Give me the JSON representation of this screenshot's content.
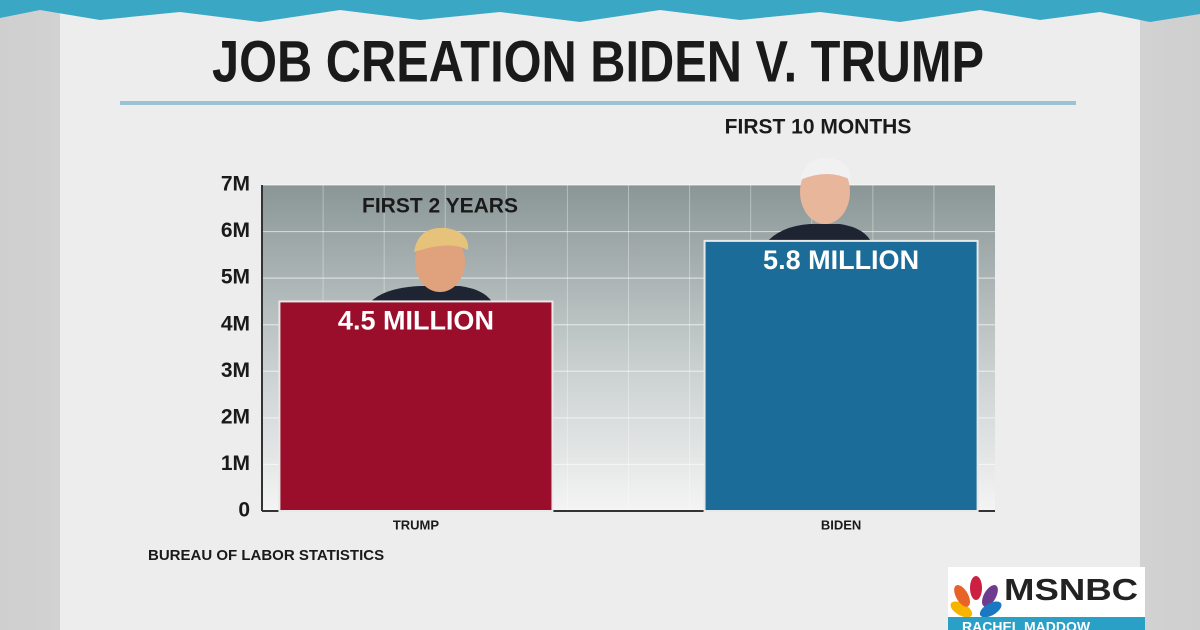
{
  "chart_data": {
    "type": "bar",
    "title": "JOB CREATION BIDEN V. TRUMP",
    "categories": [
      "TRUMP",
      "BIDEN"
    ],
    "values": [
      4500000,
      5800000
    ],
    "value_labels": [
      "4.5 MILLION",
      "5.8 MILLION"
    ],
    "colors": [
      "#9b0e2b",
      "#1b6c98"
    ],
    "annotations": [
      "FIRST 2 YEARS",
      "FIRST 10 MONTHS"
    ],
    "source": "BUREAU OF LABOR STATISTICS",
    "ylim": [
      0,
      7000000
    ],
    "yticks": [
      0,
      {
        "value": 1000000,
        "label": "1M"
      },
      {
        "value": 2000000,
        "label": "2M"
      },
      {
        "value": 3000000,
        "label": "3M"
      },
      {
        "value": 4000000,
        "label": "4M"
      },
      {
        "value": 5000000,
        "label": "5M"
      },
      {
        "value": 6000000,
        "label": "6M"
      },
      {
        "value": 7000000,
        "label": "7M"
      }
    ],
    "grid": true,
    "network": "MSNBC",
    "show": "RACHEL MADDOW"
  }
}
